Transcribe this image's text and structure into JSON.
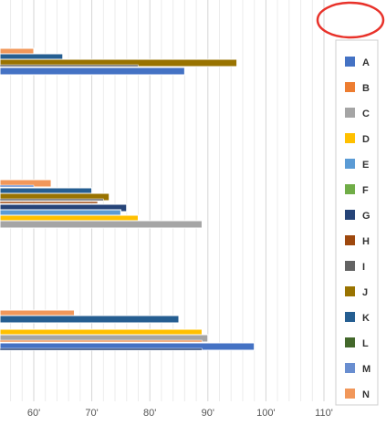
{
  "chart_data": {
    "type": "bar",
    "orientation": "horizontal",
    "xlim": [
      52,
      116
    ],
    "x_ticks": [
      60,
      70,
      80,
      90,
      100,
      110
    ],
    "x_tick_labels": [
      "60'",
      "70'",
      "80'",
      "90'",
      "100'",
      "110'"
    ],
    "grid": true,
    "legend": {
      "placement": "right"
    },
    "series": [
      {
        "name": "A",
        "color": "#4472C4"
      },
      {
        "name": "B",
        "color": "#ED7D31"
      },
      {
        "name": "C",
        "color": "#A5A5A5"
      },
      {
        "name": "D",
        "color": "#FFC000"
      },
      {
        "name": "E",
        "color": "#5B9BD5"
      },
      {
        "name": "F",
        "color": "#70AD47"
      },
      {
        "name": "G",
        "color": "#264478"
      },
      {
        "name": "H",
        "color": "#9E480E"
      },
      {
        "name": "I",
        "color": "#636363"
      },
      {
        "name": "J",
        "color": "#997300"
      },
      {
        "name": "K",
        "color": "#255E91"
      },
      {
        "name": "L",
        "color": "#43682B"
      },
      {
        "name": "M",
        "color": "#698ED0"
      },
      {
        "name": "N",
        "color": "#F1975A"
      }
    ],
    "groups": [
      {
        "bars": [
          {
            "series": "N",
            "value": 60,
            "thickness": "thick"
          },
          {
            "series": "K",
            "value": 65,
            "thickness": "thick"
          },
          {
            "series": "J",
            "value": 95,
            "thickness": "thick"
          },
          {
            "series": "I",
            "value": 78,
            "thickness": "thin"
          },
          {
            "series": "A",
            "value": 86,
            "thickness": "thick"
          }
        ]
      },
      {
        "bars": [
          {
            "series": "N",
            "value": 63,
            "thickness": "thick"
          },
          {
            "series": "M",
            "value": 60,
            "thickness": "thin"
          },
          {
            "series": "K",
            "value": 70,
            "thickness": "thick"
          },
          {
            "series": "J",
            "value": 73,
            "thickness": "thick"
          },
          {
            "series": "I",
            "value": 72,
            "thickness": "thin"
          },
          {
            "series": "H",
            "value": 71,
            "thickness": "thin"
          },
          {
            "series": "G",
            "value": 76,
            "thickness": "thick"
          },
          {
            "series": "E",
            "value": 75,
            "thickness": "thick"
          },
          {
            "series": "D",
            "value": 78,
            "thickness": "thick"
          },
          {
            "series": "C",
            "value": 89,
            "thickness": "thick"
          },
          {
            "series": "A",
            "value": 54,
            "thickness": "thick"
          }
        ]
      },
      {
        "bars": [
          {
            "series": "N",
            "value": 67,
            "thickness": "thick"
          },
          {
            "series": "K",
            "value": 85,
            "thickness": "thick"
          },
          {
            "series": "I",
            "value": 54,
            "thickness": "thin"
          },
          {
            "series": "G",
            "value": 54,
            "thickness": "thick"
          },
          {
            "series": "D",
            "value": 89,
            "thickness": "thick"
          },
          {
            "series": "C",
            "value": 90,
            "thickness": "thick"
          },
          {
            "series": "N",
            "value": 89,
            "thickness": "thin"
          },
          {
            "series": "A",
            "value": 98,
            "thickness": "thick"
          },
          {
            "series": "G",
            "value": 89,
            "thickness": "thin"
          }
        ]
      }
    ]
  }
}
